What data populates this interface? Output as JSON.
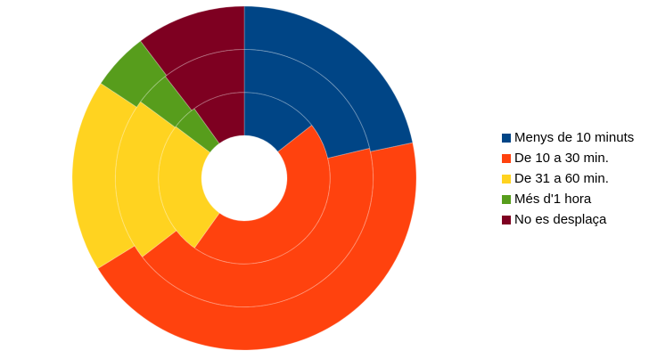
{
  "chart_data": {
    "type": "multi-donut",
    "categories": [
      "Menys de 10 minuts",
      "De 10 a 30 min.",
      "De 31 a 60 min.",
      "Més d'1 hora",
      "No es desplaça"
    ],
    "colors": [
      "#004586",
      "#ff420e",
      "#ffd320",
      "#579d1c",
      "#7e0021"
    ],
    "series": [
      {
        "values": [
          14.4,
          45.4,
          25.4,
          4.8,
          9.9
        ]
      },
      {
        "values": [
          21.3,
          43.3,
          20.6,
          4.4,
          10.5
        ]
      },
      {
        "values": [
          21.7,
          44.5,
          18.1,
          5.4,
          10.3
        ]
      }
    ],
    "legend": "right"
  }
}
